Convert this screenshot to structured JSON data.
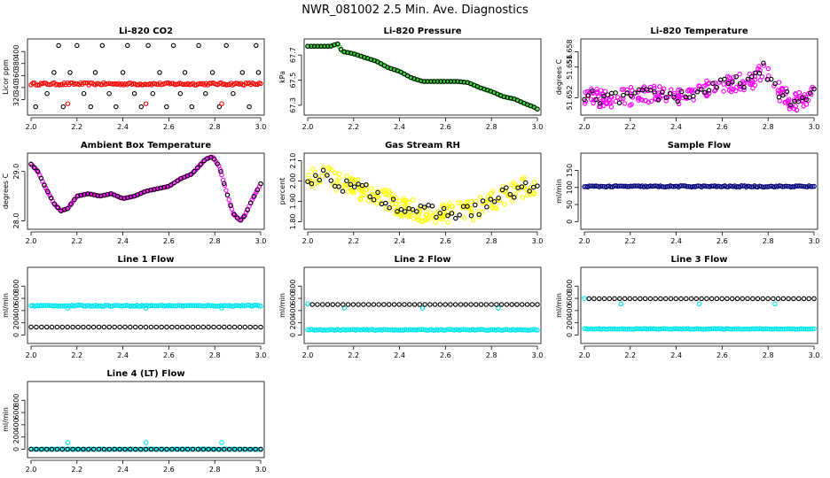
{
  "figure_title": "NWR_081002  2.5 Min. Ave. Diagnostics",
  "chart_data": [
    {
      "id": "co2",
      "type": "scatter",
      "title": "Li-820 CO2",
      "ylabel": "Licor ppm",
      "xlim": [
        2.0,
        3.0
      ],
      "xticks": [
        "2.0",
        "2.2",
        "2.4",
        "2.6",
        "2.8",
        "3.0"
      ],
      "ylim": [
        300,
        415
      ],
      "yticks": [
        "320",
        "340",
        "360",
        "380",
        "400"
      ],
      "series": [
        {
          "name": "black circles",
          "color": "#000000",
          "kind": "sparse",
          "x": [
            2.02,
            2.07,
            2.1,
            2.12,
            2.14,
            2.17,
            2.2,
            2.23,
            2.26,
            2.28,
            2.31,
            2.34,
            2.37,
            2.4,
            2.42,
            2.45,
            2.48,
            2.51,
            2.53,
            2.56,
            2.59,
            2.62,
            2.65,
            2.67,
            2.7,
            2.73,
            2.76,
            2.79,
            2.82,
            2.85,
            2.88,
            2.92,
            2.95,
            2.98,
            2.99
          ],
          "y": [
            308,
            330,
            365,
            410,
            308,
            365,
            410,
            330,
            308,
            365,
            410,
            330,
            308,
            365,
            410,
            330,
            308,
            410,
            330,
            365,
            308,
            410,
            330,
            365,
            308,
            410,
            330,
            365,
            308,
            410,
            330,
            365,
            308,
            410,
            365
          ]
        },
        {
          "name": "red band",
          "color": "#ff0000",
          "kind": "band",
          "x_start": 2.0,
          "x_end": 3.0,
          "y": 346,
          "spread": 2
        },
        {
          "name": "red outliers",
          "color": "#ff0000",
          "kind": "sparse",
          "x": [
            2.16,
            2.5,
            2.83
          ],
          "y": [
            313,
            313,
            313
          ]
        }
      ]
    },
    {
      "id": "pressure",
      "type": "scatter",
      "title": "Li-820 Pressure",
      "ylabel": "kPa",
      "xlim": [
        2.0,
        3.0
      ],
      "xticks": [
        "2.0",
        "2.2",
        "2.4",
        "2.6",
        "2.8",
        "3.0"
      ],
      "ylim": [
        67.25,
        67.8
      ],
      "yticks": [
        "67.3",
        "67.5",
        "67.7"
      ],
      "series": [
        {
          "name": "green line-points",
          "color": "#22dd22",
          "kind": "curve",
          "x": [
            2.0,
            2.05,
            2.1,
            2.13,
            2.15,
            2.2,
            2.25,
            2.3,
            2.35,
            2.4,
            2.45,
            2.5,
            2.55,
            2.6,
            2.65,
            2.7,
            2.75,
            2.8,
            2.85,
            2.9,
            2.95,
            2.98,
            3.0
          ],
          "y": [
            67.77,
            67.77,
            67.77,
            67.79,
            67.73,
            67.71,
            67.68,
            67.65,
            67.6,
            67.57,
            67.52,
            67.49,
            67.49,
            67.49,
            67.49,
            67.48,
            67.44,
            67.41,
            67.37,
            67.35,
            67.31,
            67.29,
            67.27
          ]
        },
        {
          "name": "black circles",
          "color": "#000000",
          "kind": "curve-sparse",
          "step": 2
        }
      ]
    },
    {
      "id": "temp",
      "type": "scatter",
      "title": "Li-820 Temperature",
      "ylabel": "degrees C",
      "xlim": [
        2.0,
        3.0
      ],
      "xticks": [
        "2.0",
        "2.2",
        "2.4",
        "2.6",
        "2.8",
        "3.0"
      ],
      "ylim": [
        51.6502,
        51.6592
      ],
      "yticks": [
        "51.652",
        "51.656",
        "51.658"
      ],
      "series": [
        {
          "name": "magenta noise",
          "color": "#ff00ff",
          "kind": "noisy-curve",
          "noise": 0.0012,
          "x": [
            2.0,
            2.1,
            2.2,
            2.3,
            2.4,
            2.5,
            2.55,
            2.6,
            2.7,
            2.75,
            2.78,
            2.8,
            2.85,
            2.9,
            2.95,
            3.0
          ],
          "y": [
            51.6522,
            51.6518,
            51.6522,
            51.6524,
            51.6522,
            51.6526,
            51.6536,
            51.6536,
            51.6542,
            51.6545,
            51.6558,
            51.6548,
            51.6528,
            51.6515,
            51.6515,
            51.6525
          ]
        },
        {
          "name": "black circles",
          "color": "#000000",
          "kind": "noisy-sparse",
          "step": 3
        }
      ]
    },
    {
      "id": "ambient",
      "type": "scatter",
      "title": "Ambient Box Temperature",
      "ylabel": "degrees C",
      "xlim": [
        2.0,
        3.0
      ],
      "xticks": [
        "2.0",
        "2.2",
        "2.4",
        "2.6",
        "2.8",
        "3.0"
      ],
      "ylim": [
        27.9,
        29.3
      ],
      "yticks": [
        "28.0",
        "29.0"
      ],
      "series": [
        {
          "name": "magenta curve",
          "color": "#ff00ff",
          "kind": "curve",
          "x": [
            2.0,
            2.03,
            2.06,
            2.1,
            2.13,
            2.16,
            2.2,
            2.25,
            2.3,
            2.35,
            2.4,
            2.45,
            2.5,
            2.55,
            2.6,
            2.65,
            2.7,
            2.73,
            2.76,
            2.79,
            2.82,
            2.85,
            2.88,
            2.91,
            2.93,
            2.96,
            3.0
          ],
          "y": [
            29.15,
            29.0,
            28.7,
            28.35,
            28.2,
            28.25,
            28.5,
            28.55,
            28.5,
            28.55,
            28.45,
            28.5,
            28.6,
            28.65,
            28.7,
            28.85,
            28.95,
            29.1,
            29.25,
            29.3,
            29.1,
            28.6,
            28.15,
            28.0,
            28.1,
            28.4,
            28.75
          ]
        },
        {
          "name": "black circles",
          "color": "#000000",
          "kind": "curve-sparse",
          "step": 2
        }
      ]
    },
    {
      "id": "rh",
      "type": "scatter",
      "title": "Gas Stream RH",
      "ylabel": "percent",
      "xlim": [
        2.0,
        3.0
      ],
      "xticks": [
        "2.0",
        "2.2",
        "2.4",
        "2.6",
        "2.8",
        "3.0"
      ],
      "ylim": [
        1.78,
        2.12
      ],
      "yticks": [
        "1.80",
        "1.90",
        "2.00",
        "2.10"
      ],
      "series": [
        {
          "name": "yellow noise",
          "color": "#ffff00",
          "kind": "noisy-curve",
          "noise": 0.05,
          "x": [
            2.0,
            2.05,
            2.1,
            2.15,
            2.2,
            2.3,
            2.4,
            2.5,
            2.6,
            2.7,
            2.75,
            2.8,
            2.85,
            2.9,
            2.95,
            3.0
          ],
          "y": [
            2.0,
            2.03,
            2.02,
            1.98,
            1.97,
            1.93,
            1.88,
            1.85,
            1.84,
            1.85,
            1.87,
            1.9,
            1.93,
            1.95,
            1.97,
            1.95
          ]
        },
        {
          "name": "black circles",
          "color": "#000000",
          "kind": "noisy-sparse",
          "step": 4
        }
      ]
    },
    {
      "id": "sample",
      "type": "scatter",
      "title": "Sample Flow",
      "ylabel": "ml/min",
      "xlim": [
        2.0,
        3.0
      ],
      "xticks": [
        "2.0",
        "2.2",
        "2.4",
        "2.6",
        "2.8",
        "3.0"
      ],
      "ylim": [
        -12,
        190
      ],
      "yticks": [
        "0",
        "50",
        "100",
        "150"
      ],
      "series": [
        {
          "name": "dark blue band",
          "color": "#00007a",
          "kind": "band",
          "x_start": 2.0,
          "x_end": 3.0,
          "y": 103,
          "spread": 2
        }
      ]
    },
    {
      "id": "line1",
      "type": "scatter",
      "title": "Line 1 Flow",
      "ylabel": "ml/min",
      "xlim": [
        2.0,
        3.0
      ],
      "xticks": [
        "2.0",
        "2.2",
        "2.4",
        "2.6",
        "2.8",
        "3.0"
      ],
      "ylim": [
        -80,
        1050
      ],
      "yticks": [
        "0",
        "200",
        "400",
        "600",
        "800"
      ],
      "series": [
        {
          "name": "cyan band",
          "color": "#00e5ee",
          "kind": "band",
          "x_start": 2.0,
          "x_end": 3.0,
          "y": 480,
          "spread": 10
        },
        {
          "name": "cyan dips",
          "color": "#00e5ee",
          "kind": "sparse",
          "x": [
            2.16,
            2.5,
            2.83
          ],
          "y": [
            440,
            440,
            440
          ]
        },
        {
          "name": "black circles",
          "color": "#000000",
          "kind": "band-circles",
          "x_start": 2.0,
          "x_end": 3.0,
          "y": 130,
          "count": 45
        }
      ]
    },
    {
      "id": "line2",
      "type": "scatter",
      "title": "Line 2 Flow",
      "ylabel": "ml/min",
      "xlim": [
        2.0,
        3.0
      ],
      "xticks": [
        "2.0",
        "2.2",
        "2.4",
        "2.6",
        "2.8",
        "3.0"
      ],
      "ylim": [
        -80,
        1050
      ],
      "yticks": [
        "0",
        "200",
        "400",
        "600",
        "800"
      ],
      "series": [
        {
          "name": "cyan band",
          "color": "#00e5ee",
          "kind": "band",
          "x_start": 2.0,
          "x_end": 3.0,
          "y": 85,
          "spread": 8
        },
        {
          "name": "cyan dips",
          "color": "#00e5ee",
          "kind": "sparse",
          "x": [
            2.0,
            2.16,
            2.5,
            2.83
          ],
          "y": [
            510,
            440,
            440,
            440
          ]
        },
        {
          "name": "black circles",
          "color": "#000000",
          "kind": "band-circles",
          "x_start": 2.02,
          "x_end": 3.0,
          "y": 500,
          "count": 45
        }
      ]
    },
    {
      "id": "line3",
      "type": "scatter",
      "title": "Line 3 Flow",
      "ylabel": "ml/min",
      "xlim": [
        2.0,
        3.0
      ],
      "xticks": [
        "2.0",
        "2.2",
        "2.4",
        "2.6",
        "2.8",
        "3.0"
      ],
      "ylim": [
        -80,
        1050
      ],
      "yticks": [
        "0",
        "200",
        "400",
        "600",
        "800"
      ],
      "series": [
        {
          "name": "cyan band",
          "color": "#00e5ee",
          "kind": "band",
          "x_start": 2.0,
          "x_end": 3.0,
          "y": 100,
          "spread": 6
        },
        {
          "name": "cyan dips",
          "color": "#00e5ee",
          "kind": "sparse",
          "x": [
            2.0,
            2.16,
            2.5,
            2.83
          ],
          "y": [
            600,
            510,
            510,
            510
          ]
        },
        {
          "name": "black circles",
          "color": "#000000",
          "kind": "band-circles",
          "x_start": 2.02,
          "x_end": 3.0,
          "y": 595,
          "count": 45
        }
      ]
    },
    {
      "id": "line4",
      "type": "scatter",
      "title": "Line 4 (LT) Flow",
      "ylabel": "ml/min",
      "xlim": [
        2.0,
        3.0
      ],
      "xticks": [
        "2.0",
        "2.2",
        "2.4",
        "2.6",
        "2.8",
        "3.0"
      ],
      "ylim": [
        -80,
        1050
      ],
      "yticks": [
        "0",
        "200",
        "400",
        "600",
        "800"
      ],
      "series": [
        {
          "name": "cyan band",
          "color": "#00e5ee",
          "kind": "band",
          "x_start": 2.0,
          "x_end": 3.0,
          "y": 0,
          "spread": 4
        },
        {
          "name": "cyan outliers",
          "color": "#00e5ee",
          "kind": "sparse",
          "x": [
            2.16,
            2.5,
            2.83
          ],
          "y": [
            110,
            110,
            110
          ]
        },
        {
          "name": "black circles",
          "color": "#000000",
          "kind": "band-circles",
          "x_start": 2.0,
          "x_end": 3.0,
          "y": 0,
          "count": 45
        }
      ]
    }
  ]
}
